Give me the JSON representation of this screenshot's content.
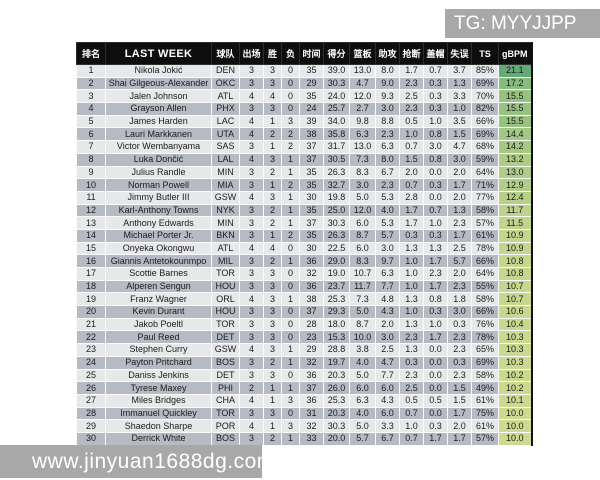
{
  "watermarks": {
    "top_right": "TG: MYYJJPP",
    "bottom_left": "www.jinyuan1688dg.com"
  },
  "colors": {
    "watermark_bg": "#a8a8a8",
    "header_bg": "#0e0e0e",
    "row_light": "#e7e8e9",
    "row_dark": "#b5bac3",
    "gbpm_min_color": "#cdda90",
    "gbpm_max_color": "#63aa74"
  },
  "chart_data": {
    "type": "table",
    "title": "LAST WEEK",
    "columns": [
      "排名",
      "LAST WEEK",
      "球队",
      "出场",
      "胜",
      "负",
      "时间",
      "得分",
      "篮板",
      "助攻",
      "抢断",
      "盖帽",
      "失误",
      "TS",
      "gBPM"
    ],
    "column_keys": [
      "rank",
      "player",
      "team",
      "games",
      "wins",
      "losses",
      "minutes",
      "points",
      "rebounds",
      "assists",
      "steals",
      "blocks",
      "turnovers",
      "ts",
      "gbpm"
    ],
    "gbpm_color_scale": {
      "min_value": 10.0,
      "max_value": 21.1,
      "min_color": "#cdda90",
      "max_color": "#63aa74"
    },
    "rows": [
      [
        "1",
        "Nikola Jokić",
        "DEN",
        "3",
        "3",
        "0",
        "35",
        "39.0",
        "13.0",
        "8.0",
        "1.7",
        "0.7",
        "3.7",
        "85%",
        "21.1"
      ],
      [
        "2",
        "Shai Gilgeous-Alexander",
        "OKC",
        "3",
        "3",
        "0",
        "29",
        "30.3",
        "4.7",
        "9.0",
        "2.3",
        "0.3",
        "1.3",
        "69%",
        "17.2"
      ],
      [
        "3",
        "Jalen Johnson",
        "ATL",
        "4",
        "4",
        "0",
        "35",
        "24.0",
        "12.0",
        "9.3",
        "2.5",
        "0.3",
        "3.3",
        "70%",
        "15.5"
      ],
      [
        "4",
        "Grayson Allen",
        "PHX",
        "3",
        "3",
        "0",
        "24",
        "25.7",
        "2.7",
        "3.0",
        "2.3",
        "0.3",
        "1.0",
        "82%",
        "15.5"
      ],
      [
        "5",
        "James Harden",
        "LAC",
        "4",
        "1",
        "3",
        "39",
        "34.0",
        "9.8",
        "8.8",
        "0.5",
        "1.0",
        "3.5",
        "66%",
        "15.5"
      ],
      [
        "6",
        "Lauri Markkanen",
        "UTA",
        "4",
        "2",
        "2",
        "38",
        "35.8",
        "6.3",
        "2.3",
        "1.0",
        "0.8",
        "1.5",
        "69%",
        "14.4"
      ],
      [
        "7",
        "Victor Wembanyama",
        "SAS",
        "3",
        "1",
        "2",
        "37",
        "31.7",
        "13.0",
        "6.3",
        "0.7",
        "3.0",
        "4.7",
        "68%",
        "14.2"
      ],
      [
        "8",
        "Luka Dončić",
        "LAL",
        "4",
        "3",
        "1",
        "37",
        "30.5",
        "7.3",
        "8.0",
        "1.5",
        "0.8",
        "3.0",
        "59%",
        "13.2"
      ],
      [
        "9",
        "Julius Randle",
        "MIN",
        "3",
        "2",
        "1",
        "35",
        "26.3",
        "8.3",
        "6.7",
        "2.0",
        "0.0",
        "2.0",
        "64%",
        "13.0"
      ],
      [
        "10",
        "Norman Powell",
        "MIA",
        "3",
        "1",
        "2",
        "35",
        "32.7",
        "3.0",
        "2.3",
        "0.7",
        "0.3",
        "1.7",
        "71%",
        "12.9"
      ],
      [
        "11",
        "Jimmy Butler III",
        "GSW",
        "4",
        "3",
        "1",
        "30",
        "19.8",
        "5.0",
        "5.3",
        "2.8",
        "0.0",
        "2.0",
        "77%",
        "12.4"
      ],
      [
        "12",
        "Karl-Anthony Towns",
        "NYK",
        "3",
        "2",
        "1",
        "35",
        "25.0",
        "12.0",
        "4.0",
        "1.7",
        "0.7",
        "1.3",
        "58%",
        "11.7"
      ],
      [
        "13",
        "Anthony Edwards",
        "MIN",
        "3",
        "2",
        "1",
        "37",
        "30.3",
        "6.0",
        "5.3",
        "1.7",
        "1.0",
        "2.3",
        "57%",
        "11.5"
      ],
      [
        "14",
        "Michael Porter Jr.",
        "BKN",
        "3",
        "1",
        "2",
        "35",
        "26.3",
        "8.7",
        "5.7",
        "0.3",
        "0.3",
        "1.7",
        "61%",
        "10.9"
      ],
      [
        "15",
        "Onyeka Okongwu",
        "ATL",
        "4",
        "4",
        "0",
        "30",
        "22.5",
        "6.0",
        "3.0",
        "1.3",
        "1.3",
        "2.5",
        "78%",
        "10.9"
      ],
      [
        "16",
        "Giannis Antetokounmpo",
        "MIL",
        "3",
        "2",
        "1",
        "36",
        "29.0",
        "8.3",
        "9.7",
        "1.0",
        "1.7",
        "5.7",
        "66%",
        "10.8"
      ],
      [
        "17",
        "Scottie Barnes",
        "TOR",
        "3",
        "3",
        "0",
        "32",
        "19.0",
        "10.7",
        "6.3",
        "1.0",
        "2.3",
        "2.0",
        "64%",
        "10.8"
      ],
      [
        "18",
        "Alperen Sengun",
        "HOU",
        "3",
        "3",
        "0",
        "36",
        "23.7",
        "11.7",
        "7.7",
        "1.0",
        "1.7",
        "2.3",
        "55%",
        "10.7"
      ],
      [
        "19",
        "Franz Wagner",
        "ORL",
        "4",
        "3",
        "1",
        "38",
        "25.3",
        "7.3",
        "4.8",
        "1.3",
        "0.8",
        "1.8",
        "58%",
        "10.7"
      ],
      [
        "20",
        "Kevin Durant",
        "HOU",
        "3",
        "3",
        "0",
        "37",
        "29.3",
        "5.0",
        "4.3",
        "1.0",
        "0.3",
        "3.0",
        "66%",
        "10.6"
      ],
      [
        "21",
        "Jakob Poeltl",
        "TOR",
        "3",
        "3",
        "0",
        "28",
        "18.0",
        "8.7",
        "2.0",
        "1.3",
        "1.0",
        "0.3",
        "76%",
        "10.4"
      ],
      [
        "22",
        "Paul Reed",
        "DET",
        "3",
        "3",
        "0",
        "23",
        "15.3",
        "10.0",
        "3.0",
        "2.3",
        "1.7",
        "2.3",
        "78%",
        "10.3"
      ],
      [
        "23",
        "Stephen Curry",
        "GSW",
        "4",
        "3",
        "1",
        "29",
        "28.8",
        "3.8",
        "2.5",
        "1.3",
        "0.0",
        "2.3",
        "65%",
        "10.3"
      ],
      [
        "24",
        "Payton Pritchard",
        "BOS",
        "3",
        "2",
        "1",
        "32",
        "19.7",
        "4.0",
        "4.7",
        "0.3",
        "0.0",
        "0.3",
        "69%",
        "10.3"
      ],
      [
        "25",
        "Daniss Jenkins",
        "DET",
        "3",
        "3",
        "0",
        "36",
        "20.3",
        "5.0",
        "7.7",
        "2.3",
        "0.0",
        "2.3",
        "58%",
        "10.2"
      ],
      [
        "26",
        "Tyrese Maxey",
        "PHI",
        "2",
        "1",
        "1",
        "37",
        "26.0",
        "6.0",
        "6.0",
        "2.5",
        "0.0",
        "1.5",
        "49%",
        "10.2"
      ],
      [
        "27",
        "Miles Bridges",
        "CHA",
        "4",
        "1",
        "3",
        "36",
        "25.3",
        "6.3",
        "4.3",
        "0.5",
        "0.5",
        "1.5",
        "61%",
        "10.1"
      ],
      [
        "28",
        "Immanuel Quickley",
        "TOR",
        "3",
        "3",
        "0",
        "31",
        "20.3",
        "4.0",
        "6.0",
        "0.7",
        "0.0",
        "1.7",
        "75%",
        "10.0"
      ],
      [
        "29",
        "Shaedon Sharpe",
        "POR",
        "4",
        "1",
        "3",
        "32",
        "30.3",
        "5.0",
        "3.3",
        "1.0",
        "0.3",
        "2.0",
        "61%",
        "10.0"
      ],
      [
        "30",
        "Derrick White",
        "BOS",
        "3",
        "2",
        "1",
        "33",
        "20.0",
        "5.7",
        "6.7",
        "0.7",
        "1.7",
        "1.7",
        "57%",
        "10.0"
      ]
    ]
  }
}
